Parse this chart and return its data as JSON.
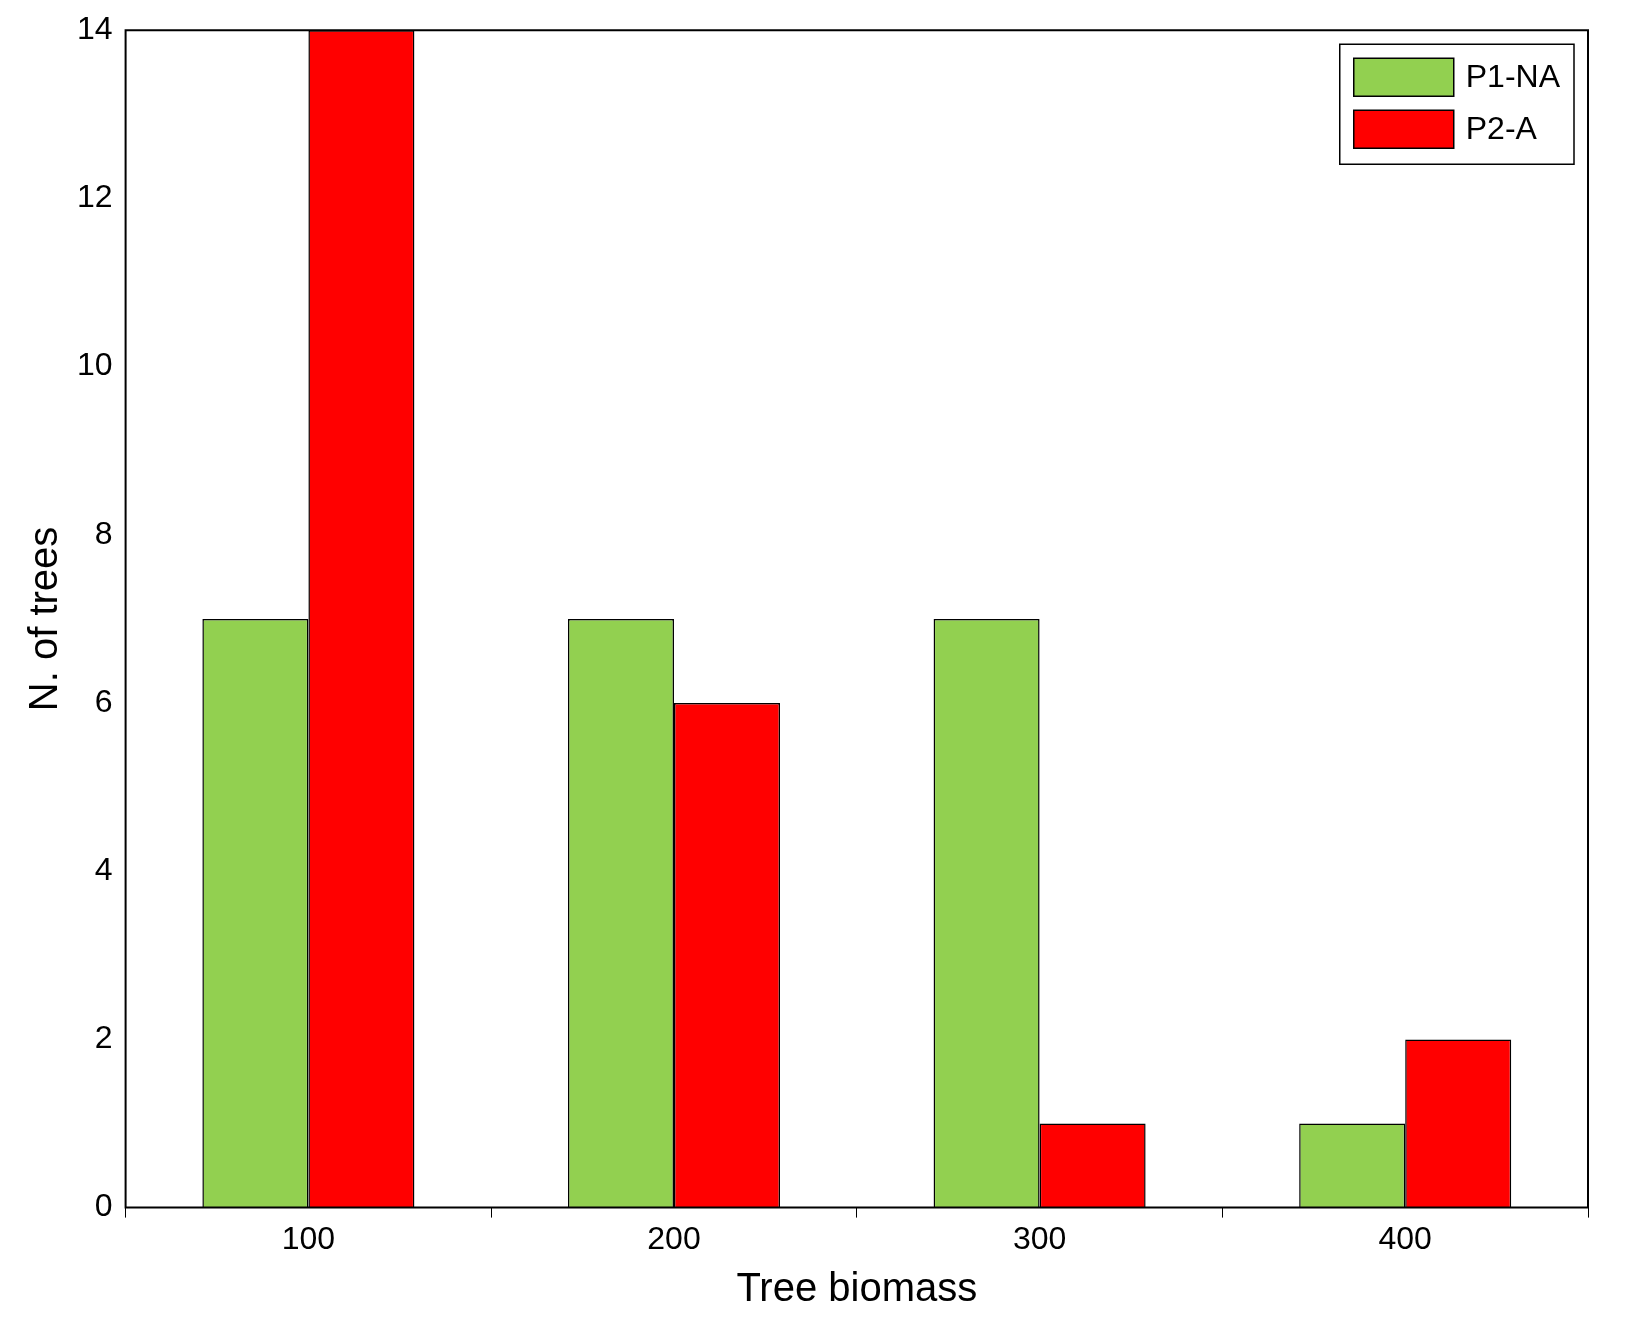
{
  "chart_data": {
    "type": "bar",
    "xlabel": "Tree biomass",
    "ylabel": "N. of trees",
    "categories": [
      "100",
      "200",
      "300",
      "400"
    ],
    "series": [
      {
        "name": "P1-NA",
        "color": "#92d050",
        "values": [
          7,
          7,
          7,
          1
        ]
      },
      {
        "name": "P2-A",
        "color": "#ff0000",
        "values": [
          14,
          6,
          1,
          2
        ]
      }
    ],
    "ylim": [
      0,
      14
    ],
    "yticks": [
      0,
      2,
      4,
      6,
      8,
      10,
      12,
      14
    ],
    "legend": "top right"
  }
}
